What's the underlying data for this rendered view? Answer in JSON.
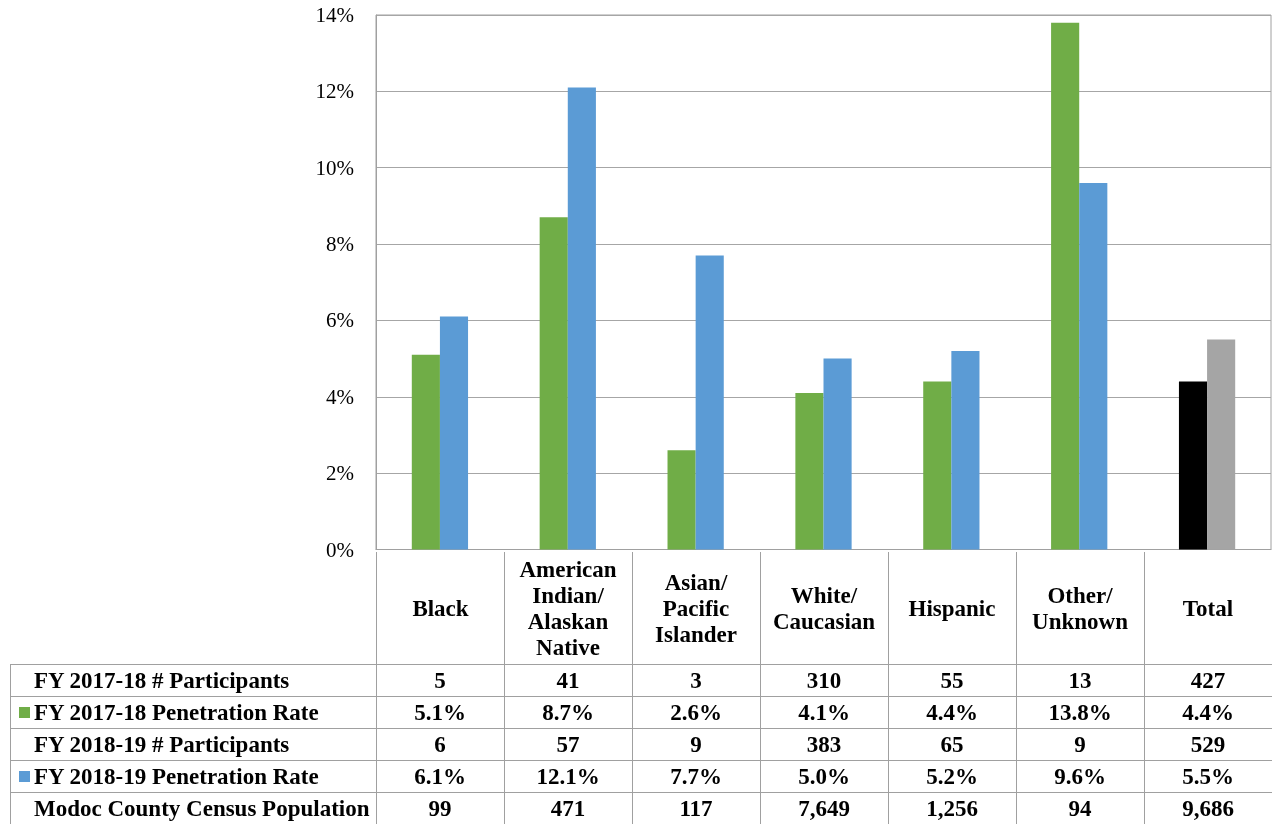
{
  "chart_data": [
    {
      "type": "bar",
      "categories": [
        null,
        null,
        null,
        null,
        null,
        null,
        null
      ],
      "series": [
        {
          "name": "FY 2017-18 Penetration Rate",
          "color": "#70ad47",
          "colors": [
            "#70ad47",
            "#70ad47",
            "#70ad47",
            "#70ad47",
            "#70ad47",
            "#70ad47",
            "#000000"
          ],
          "values": [
            5.1,
            8.7,
            2.6,
            4.1,
            4.4,
            13.8,
            4.4
          ],
          "value_labels": [
            "5.1%",
            "8.7%",
            "2.6%",
            "4.1%",
            "4.4%",
            "13.8%",
            "4.4%"
          ]
        },
        {
          "name": "FY 2018-19 Penetration Rate",
          "color": "#5b9bd5",
          "colors": [
            "#5b9bd5",
            "#5b9bd5",
            "#5b9bd5",
            "#5b9bd5",
            "#5b9bd5",
            "#5b9bd5",
            "#a5a5a5"
          ],
          "values": [
            6.1,
            12.1,
            7.7,
            5.0,
            5.2,
            9.6,
            5.5
          ],
          "value_labels": [
            "6.1%",
            "12.1%",
            "7.7%",
            "5.0%",
            "5.2%",
            "9.6%",
            "5.5%"
          ]
        }
      ],
      "ylim": [
        0,
        14
      ],
      "yticks": [
        {
          "value": 0,
          "label": "0%"
        },
        {
          "value": 2,
          "label": "2%"
        },
        {
          "value": 4,
          "label": "4%"
        },
        {
          "value": 6,
          "label": "6%"
        },
        {
          "value": 8,
          "label": "8%"
        },
        {
          "value": 10,
          "label": "10%"
        },
        {
          "value": 12,
          "label": "12%"
        },
        {
          "value": 14,
          "label": "14%"
        }
      ],
      "grid": "y",
      "legend": "bottom left"
    },
    {
      "type": "other",
      "categories": [
        "Black",
        "American Indian/ Alaskan Native",
        "Asian/ Pacific Islander",
        "White/ Caucasian",
        "Hispanic",
        "Other/ Unknown",
        "Total"
      ],
      "series": [
        {
          "name": "FY 2017-18 # Participants",
          "values": [
            5,
            41,
            3,
            310,
            55,
            13,
            427
          ],
          "value_labels": [
            "5",
            "41",
            "3",
            "310",
            "55",
            "13",
            "427"
          ]
        },
        {
          "name": "FY 2018-19 # Participants",
          "values": [
            6,
            57,
            9,
            383,
            65,
            9,
            529
          ],
          "value_labels": [
            "6",
            "57",
            "9",
            "383",
            "65",
            "9",
            "529"
          ]
        },
        {
          "name": "Modoc County Census Population",
          "values": [
            99,
            471,
            117,
            7649,
            1256,
            94,
            9686
          ],
          "value_labels": [
            "99",
            "471",
            "117",
            "7,649",
            "1,256",
            "94",
            "9,686"
          ]
        }
      ]
    }
  ]
}
